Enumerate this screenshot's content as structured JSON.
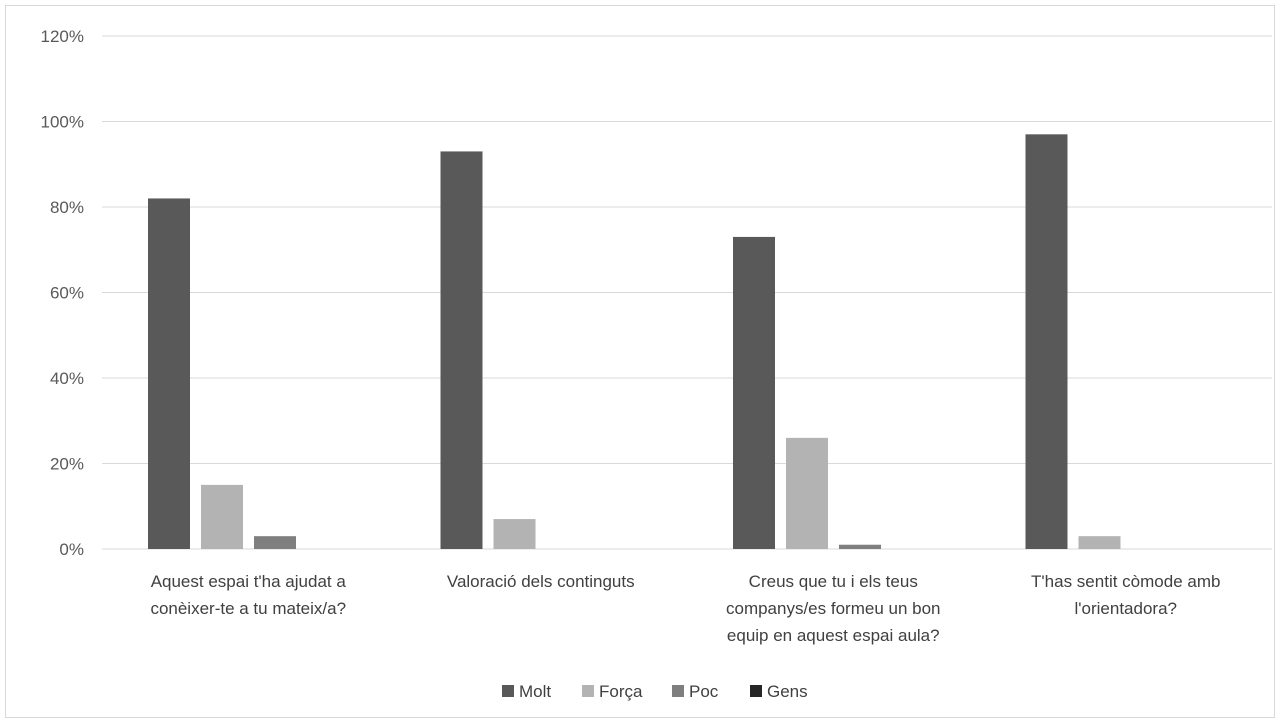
{
  "chart_data": {
    "type": "bar",
    "categories": [
      [
        "Aquest espai t'ha ajudat a",
        "conèixer-te a tu mateix/a?"
      ],
      [
        "Valoració dels continguts"
      ],
      [
        "Creus que tu i els teus",
        "companys/es formeu un bon",
        "equip en aquest espai aula?"
      ],
      [
        "T'has sentit còmode amb",
        "l'orientadora?"
      ]
    ],
    "series": [
      {
        "name": "Molt",
        "color": "#595959",
        "values": [
          82,
          93,
          73,
          97
        ]
      },
      {
        "name": "Força",
        "color": "#b3b3b3",
        "values": [
          15,
          7,
          26,
          3
        ]
      },
      {
        "name": "Poc",
        "color": "#7f7f7f",
        "values": [
          3,
          0,
          1,
          0
        ]
      },
      {
        "name": "Gens",
        "color": "#262626",
        "values": [
          0,
          0,
          0,
          0
        ]
      }
    ],
    "y_ticks": [
      "0%",
      "20%",
      "40%",
      "60%",
      "80%",
      "100%",
      "120%"
    ],
    "ylim": [
      0,
      120
    ],
    "grid": true,
    "legend_position": "bottom"
  }
}
